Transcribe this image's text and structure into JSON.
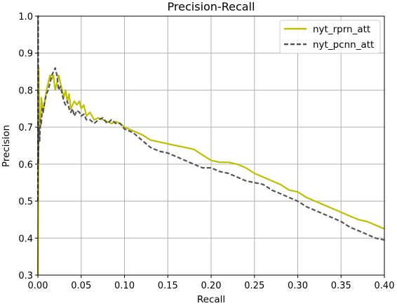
{
  "chart_data": {
    "type": "line",
    "title": "Precision-Recall",
    "xlabel": "Recall",
    "ylabel": "Precision",
    "xlim": [
      0.0,
      0.4
    ],
    "ylim": [
      0.3,
      1.0
    ],
    "xticks": [
      "0.00",
      "0.05",
      "0.10",
      "0.15",
      "0.20",
      "0.25",
      "0.30",
      "0.35",
      "0.40"
    ],
    "yticks": [
      "0.3",
      "0.4",
      "0.5",
      "0.6",
      "0.7",
      "0.8",
      "0.9",
      "1.0"
    ],
    "grid": true,
    "legend_position": "top-right",
    "series": [
      {
        "name": "nyt_rprn_att",
        "color": "#bfbf00",
        "style": "solid",
        "x": [
          0.0,
          0.0005,
          0.001,
          0.0015,
          0.002,
          0.003,
          0.004,
          0.006,
          0.008,
          0.01,
          0.012,
          0.014,
          0.016,
          0.018,
          0.02,
          0.022,
          0.024,
          0.026,
          0.028,
          0.03,
          0.032,
          0.034,
          0.036,
          0.038,
          0.04,
          0.042,
          0.045,
          0.048,
          0.05,
          0.053,
          0.056,
          0.06,
          0.065,
          0.07,
          0.075,
          0.08,
          0.085,
          0.09,
          0.095,
          0.1,
          0.11,
          0.12,
          0.13,
          0.14,
          0.15,
          0.16,
          0.17,
          0.18,
          0.19,
          0.2,
          0.21,
          0.22,
          0.23,
          0.24,
          0.25,
          0.26,
          0.27,
          0.28,
          0.29,
          0.3,
          0.31,
          0.32,
          0.33,
          0.34,
          0.35,
          0.36,
          0.37,
          0.38,
          0.39,
          0.4
        ],
        "y": [
          0.3,
          0.5,
          0.86,
          0.72,
          0.74,
          0.7,
          0.78,
          0.74,
          0.77,
          0.8,
          0.82,
          0.84,
          0.83,
          0.84,
          0.8,
          0.82,
          0.84,
          0.82,
          0.8,
          0.78,
          0.8,
          0.77,
          0.79,
          0.75,
          0.76,
          0.77,
          0.76,
          0.77,
          0.75,
          0.76,
          0.73,
          0.74,
          0.72,
          0.725,
          0.72,
          0.715,
          0.71,
          0.715,
          0.71,
          0.7,
          0.69,
          0.68,
          0.665,
          0.66,
          0.655,
          0.65,
          0.645,
          0.64,
          0.625,
          0.61,
          0.605,
          0.605,
          0.6,
          0.59,
          0.575,
          0.565,
          0.555,
          0.545,
          0.53,
          0.525,
          0.51,
          0.5,
          0.49,
          0.48,
          0.47,
          0.46,
          0.45,
          0.445,
          0.435,
          0.425
        ]
      },
      {
        "name": "nyt_pcnn_att",
        "color": "#555555",
        "style": "dashed",
        "x": [
          0.0,
          0.0003,
          0.0006,
          0.001,
          0.0015,
          0.002,
          0.003,
          0.004,
          0.005,
          0.006,
          0.008,
          0.01,
          0.012,
          0.014,
          0.016,
          0.018,
          0.02,
          0.022,
          0.024,
          0.026,
          0.028,
          0.03,
          0.032,
          0.034,
          0.036,
          0.038,
          0.04,
          0.042,
          0.045,
          0.048,
          0.05,
          0.053,
          0.056,
          0.06,
          0.065,
          0.07,
          0.075,
          0.08,
          0.085,
          0.09,
          0.095,
          0.1,
          0.11,
          0.12,
          0.13,
          0.14,
          0.15,
          0.16,
          0.17,
          0.18,
          0.19,
          0.2,
          0.21,
          0.22,
          0.23,
          0.24,
          0.25,
          0.26,
          0.27,
          0.28,
          0.29,
          0.3,
          0.31,
          0.32,
          0.33,
          0.34,
          0.35,
          0.36,
          0.37,
          0.38,
          0.39,
          0.4
        ],
        "y": [
          0.5,
          1.0,
          0.6,
          0.67,
          0.7,
          0.66,
          0.72,
          0.71,
          0.75,
          0.74,
          0.77,
          0.79,
          0.8,
          0.82,
          0.84,
          0.85,
          0.86,
          0.84,
          0.8,
          0.81,
          0.79,
          0.77,
          0.76,
          0.77,
          0.75,
          0.74,
          0.75,
          0.73,
          0.745,
          0.74,
          0.73,
          0.735,
          0.72,
          0.72,
          0.71,
          0.72,
          0.725,
          0.71,
          0.72,
          0.71,
          0.71,
          0.695,
          0.685,
          0.665,
          0.645,
          0.635,
          0.63,
          0.62,
          0.61,
          0.6,
          0.59,
          0.59,
          0.58,
          0.575,
          0.565,
          0.555,
          0.55,
          0.545,
          0.53,
          0.52,
          0.51,
          0.5,
          0.485,
          0.475,
          0.465,
          0.455,
          0.445,
          0.43,
          0.42,
          0.41,
          0.4,
          0.395
        ]
      }
    ]
  }
}
